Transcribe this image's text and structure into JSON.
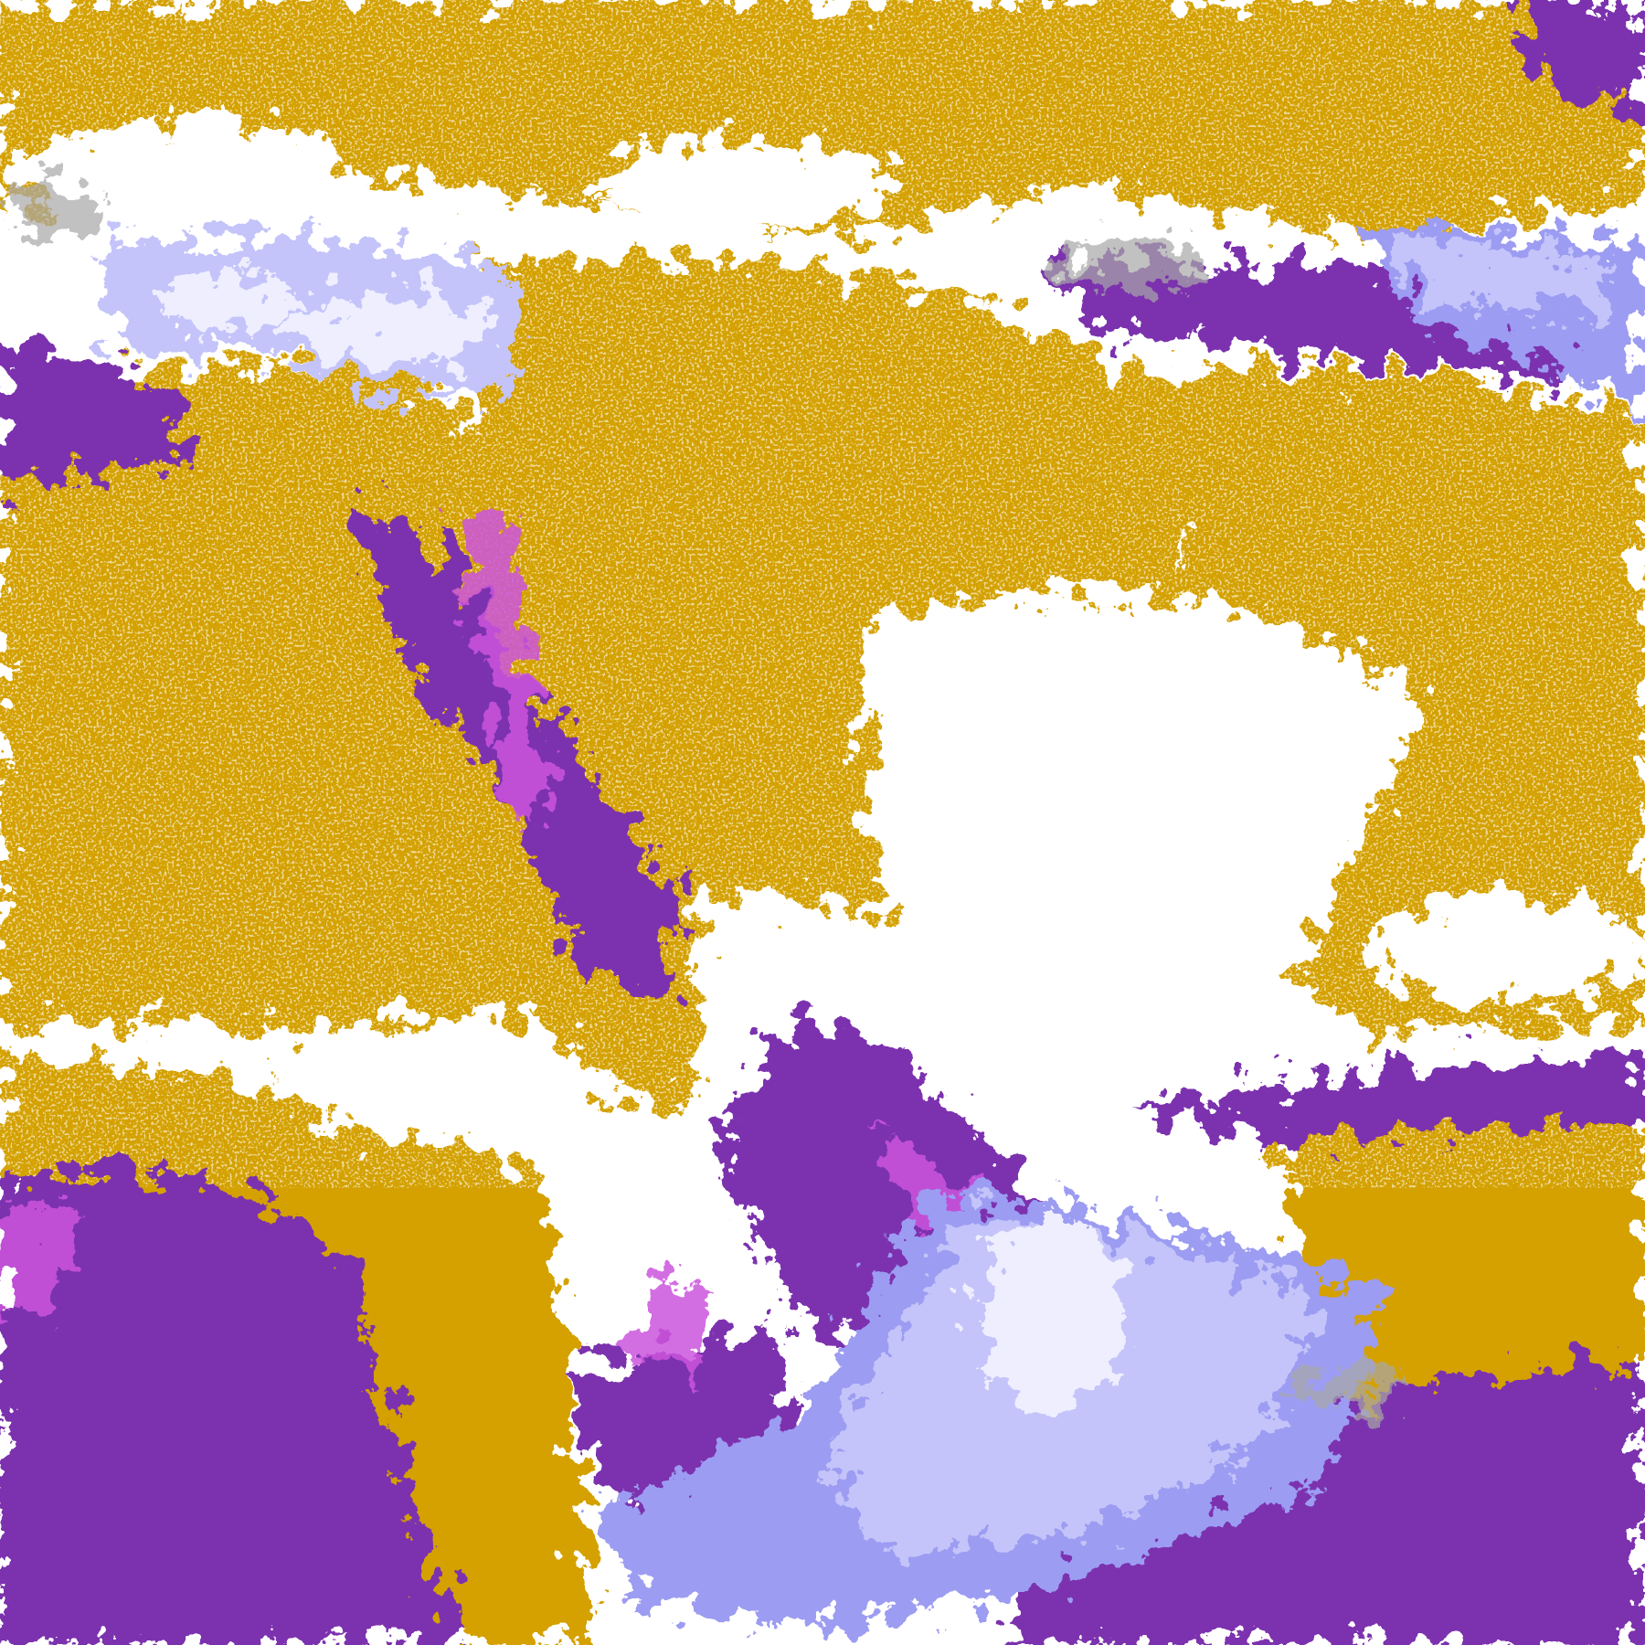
{
  "image": {
    "kind": "false-color satellite cloud classification",
    "palette": {
      "clear": "#ffffff",
      "gold": "#d4a100",
      "purple": "#7b30ae",
      "magenta": "#cc55dd",
      "lavender": "#c4c4fa",
      "periwinkle": "#9c9cf2",
      "pale": "#eeeeff",
      "gray": "#a8a8a8"
    }
  }
}
